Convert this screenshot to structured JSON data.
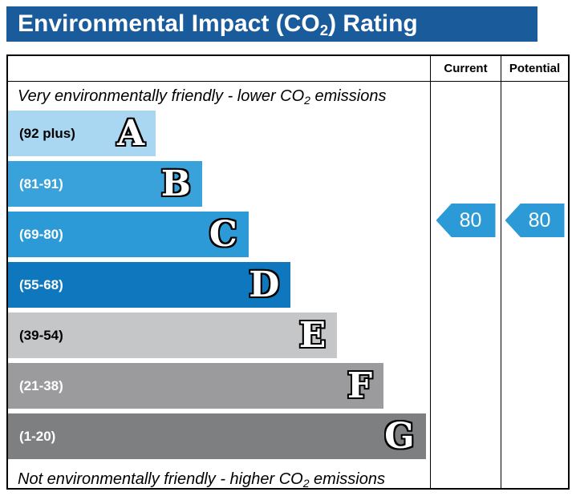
{
  "title": {
    "pre": "Environmental Impact (CO",
    "sub": "2",
    "post": ") Rating"
  },
  "notes": {
    "top": {
      "pre": "Very environmentally friendly - lower CO",
      "sub": "2",
      "post": " emissions"
    },
    "bottom": {
      "pre": "Not environmentally friendly - higher CO",
      "sub": "2",
      "post": " emissions"
    }
  },
  "chart_data": {
    "type": "bar",
    "title": "Environmental Impact (CO2) Rating",
    "orientation": "horizontal",
    "bands": [
      {
        "letter": "A",
        "range": "(92 plus)",
        "range_min": 92,
        "range_max": 100,
        "color": "#a9d7f1",
        "label_color": "#000000",
        "width_pct": 35
      },
      {
        "letter": "B",
        "range": "(81-91)",
        "range_min": 81,
        "range_max": 91,
        "color": "#39a2da",
        "label_color": "#ffffff",
        "width_pct": 46
      },
      {
        "letter": "C",
        "range": "(69-80)",
        "range_min": 69,
        "range_max": 80,
        "color": "#2c9ad6",
        "label_color": "#ffffff",
        "width_pct": 57
      },
      {
        "letter": "D",
        "range": "(55-68)",
        "range_min": 55,
        "range_max": 68,
        "color": "#0f77bd",
        "label_color": "#ffffff",
        "width_pct": 67
      },
      {
        "letter": "E",
        "range": "(39-54)",
        "range_min": 39,
        "range_max": 54,
        "color": "#c5c6c8",
        "label_color": "#000000",
        "width_pct": 78
      },
      {
        "letter": "F",
        "range": "(21-38)",
        "range_min": 21,
        "range_max": 38,
        "color": "#9b9b9d",
        "label_color": "#ffffff",
        "width_pct": 89
      },
      {
        "letter": "G",
        "range": "(1-20)",
        "range_min": 1,
        "range_max": 20,
        "color": "#7e7f81",
        "label_color": "#ffffff",
        "width_pct": 99
      }
    ],
    "current": {
      "label": "Current",
      "value": 80,
      "band": "C",
      "color": "#2c9ad6"
    },
    "potential": {
      "label": "Potential",
      "value": 80,
      "band": "C",
      "color": "#2c9ad6"
    }
  }
}
